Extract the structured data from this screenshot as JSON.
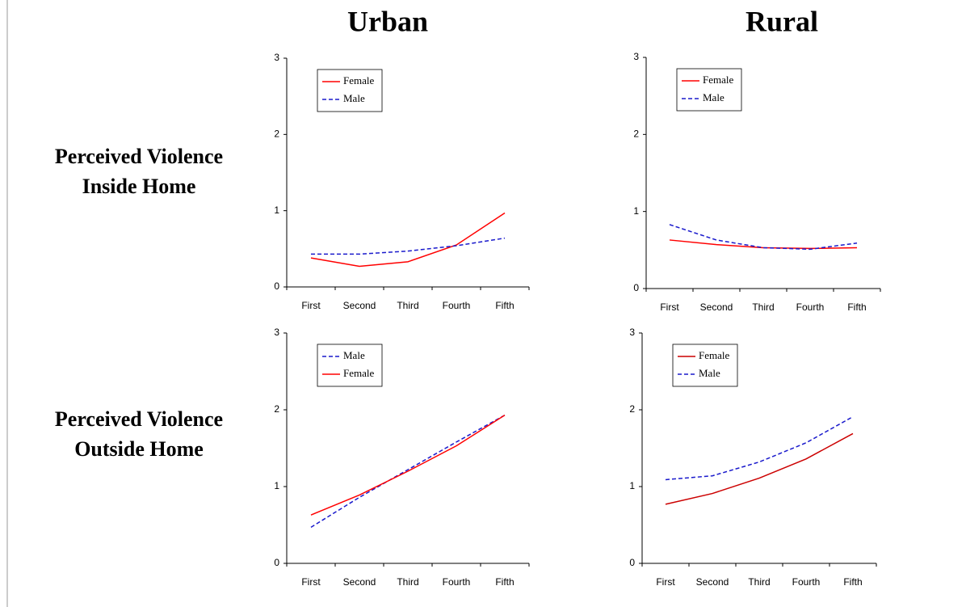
{
  "column_titles": [
    "Urban",
    "Rural"
  ],
  "row_titles": [
    "Perceived Violence Inside Home",
    "Perceived Violence Outside Home"
  ],
  "chart_data": [
    {
      "type": "line",
      "categories": [
        "First",
        "Second",
        "Third",
        "Fourth",
        "Fifth"
      ],
      "ylim": [
        0,
        3
      ],
      "yticks": [
        0,
        1,
        2,
        3
      ],
      "legend": "upper left",
      "series": [
        {
          "name": "Female",
          "color": "#ff0000",
          "style": "solid",
          "values": [
            0.38,
            0.27,
            0.33,
            0.55,
            0.97
          ]
        },
        {
          "name": "Male",
          "color": "#1a1acc",
          "style": "dashed",
          "values": [
            0.43,
            0.43,
            0.47,
            0.54,
            0.64
          ]
        }
      ]
    },
    {
      "type": "line",
      "categories": [
        "First",
        "Second",
        "Third",
        "Fourth",
        "Fifth"
      ],
      "ylim": [
        0,
        3
      ],
      "yticks": [
        0,
        1,
        2,
        3
      ],
      "legend": "upper left",
      "series": [
        {
          "name": "Female",
          "color": "#ff0000",
          "style": "solid",
          "values": [
            0.63,
            0.57,
            0.53,
            0.52,
            0.53
          ]
        },
        {
          "name": "Male",
          "color": "#1a1acc",
          "style": "dashed",
          "values": [
            0.83,
            0.63,
            0.53,
            0.51,
            0.59
          ]
        }
      ]
    },
    {
      "type": "line",
      "categories": [
        "First",
        "Second",
        "Third",
        "Fourth",
        "Fifth"
      ],
      "ylim": [
        0,
        3
      ],
      "yticks": [
        0,
        1,
        2,
        3
      ],
      "legend": "upper left",
      "series": [
        {
          "name": "Male",
          "color": "#1a1acc",
          "style": "dashed",
          "values": [
            0.47,
            0.86,
            1.22,
            1.58,
            1.93
          ]
        },
        {
          "name": "Female",
          "color": "#ff0000",
          "style": "solid",
          "values": [
            0.63,
            0.89,
            1.2,
            1.53,
            1.93
          ]
        }
      ]
    },
    {
      "type": "line",
      "categories": [
        "First",
        "Second",
        "Third",
        "Fourth",
        "Fifth"
      ],
      "ylim": [
        0,
        3
      ],
      "yticks": [
        0,
        1,
        2,
        3
      ],
      "legend": "upper left",
      "series": [
        {
          "name": "Female",
          "color": "#cc0000",
          "style": "solid",
          "values": [
            0.77,
            0.91,
            1.11,
            1.36,
            1.69
          ]
        },
        {
          "name": "Male",
          "color": "#1a1acc",
          "style": "dashed",
          "values": [
            1.09,
            1.14,
            1.32,
            1.57,
            1.91
          ]
        }
      ]
    }
  ]
}
